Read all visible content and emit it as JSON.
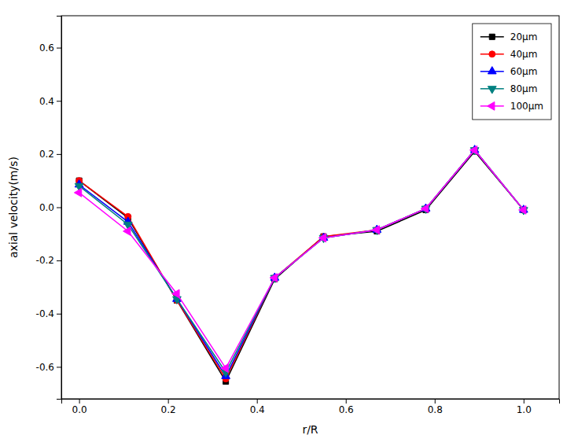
{
  "chart_data": {
    "type": "line",
    "xlabel": "r/R",
    "ylabel": "axial velocity(m/s)",
    "x": [
      0.0,
      0.11,
      0.22,
      0.33,
      0.44,
      0.55,
      0.67,
      0.78,
      0.89,
      1.0
    ],
    "series": [
      {
        "name": "20μm",
        "color": "#000000",
        "marker": "square",
        "values": [
          0.1,
          -0.04,
          -0.35,
          -0.655,
          -0.27,
          -0.11,
          -0.09,
          -0.01,
          0.21,
          -0.01
        ]
      },
      {
        "name": "40μm",
        "color": "#ff0000",
        "marker": "circle",
        "values": [
          0.1,
          -0.035,
          -0.35,
          -0.645,
          -0.265,
          -0.11,
          -0.085,
          -0.005,
          0.215,
          -0.01
        ]
      },
      {
        "name": "60μm",
        "color": "#0000ff",
        "marker": "triangle-up",
        "values": [
          0.085,
          -0.055,
          -0.345,
          -0.635,
          -0.265,
          -0.115,
          -0.085,
          -0.005,
          0.215,
          -0.01
        ]
      },
      {
        "name": "80μm",
        "color": "#008080",
        "marker": "triangle-down",
        "values": [
          0.08,
          -0.065,
          -0.345,
          -0.62,
          -0.265,
          -0.115,
          -0.085,
          -0.005,
          0.215,
          -0.01
        ]
      },
      {
        "name": "100μm",
        "color": "#ff00ff",
        "marker": "triangle-left",
        "values": [
          0.055,
          -0.09,
          -0.325,
          -0.605,
          -0.265,
          -0.115,
          -0.085,
          -0.005,
          0.215,
          -0.01
        ]
      }
    ],
    "xlim": [
      -0.04,
      1.08
    ],
    "ylim": [
      -0.72,
      0.72
    ],
    "xticks": [
      {
        "value": 0.0,
        "label": "0.0"
      },
      0.2,
      0.4,
      0.6,
      0.8,
      {
        "value": 1.0,
        "label": "1.0"
      }
    ],
    "yticks": [
      -0.6,
      -0.4,
      -0.2,
      {
        "value": 0.0,
        "label": "0.0"
      },
      0.2,
      0.4,
      0.6
    ],
    "legend": "upper right",
    "grid": false
  }
}
